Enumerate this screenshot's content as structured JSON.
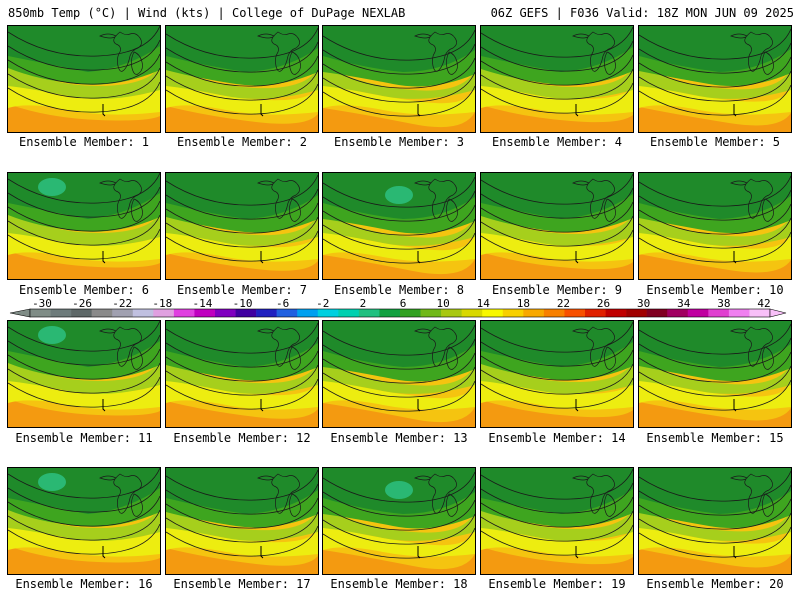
{
  "header": {
    "left": "850mb Temp (°C) | Wind (kts) | College of DuPage NEXLAB",
    "right": "06Z GEFS | F036 Valid: 18Z MON JUN 09 2025"
  },
  "members": [
    "Ensemble Member: 1",
    "Ensemble Member: 2",
    "Ensemble Member: 3",
    "Ensemble Member: 4",
    "Ensemble Member: 5",
    "Ensemble Member: 6",
    "Ensemble Member: 7",
    "Ensemble Member: 8",
    "Ensemble Member: 9",
    "Ensemble Member: 10",
    "Ensemble Member: 11",
    "Ensemble Member: 12",
    "Ensemble Member: 13",
    "Ensemble Member: 14",
    "Ensemble Member: 15",
    "Ensemble Member: 16",
    "Ensemble Member: 17",
    "Ensemble Member: 18",
    "Ensemble Member: 19",
    "Ensemble Member: 20"
  ],
  "colorbar": {
    "labels": [
      "-30",
      "-26",
      "-22",
      "-18",
      "-14",
      "-10",
      "-6",
      "-2",
      "2",
      "6",
      "10",
      "14",
      "18",
      "22",
      "26",
      "30",
      "34",
      "38",
      "42"
    ],
    "colors": [
      "#7f8c86",
      "#6d7b7b",
      "#5e6868",
      "#8a8a8a",
      "#a0a0b0",
      "#c0c0e0",
      "#e0a0e0",
      "#e040e0",
      "#c000c0",
      "#8000c0",
      "#4000a0",
      "#2020c0",
      "#2060e0",
      "#00a0f0",
      "#00d0e0",
      "#00d0b0",
      "#20c080",
      "#10a040",
      "#30a020",
      "#70b818",
      "#a8c810",
      "#d8d800",
      "#f8f800",
      "#f8d000",
      "#f8a800",
      "#f88000",
      "#f85000",
      "#e02000",
      "#c00000",
      "#a00000",
      "#800020",
      "#a00060",
      "#c000a0",
      "#e040d0",
      "#f080f0",
      "#f8c0f8"
    ]
  },
  "palette": {
    "dark_green": "#1f8a2a",
    "green": "#3ea51f",
    "yellow_green": "#a6cf1c",
    "yellow": "#eded10",
    "orange_yellow": "#f5c410",
    "orange": "#f49a10",
    "teal": "#2dbf80"
  }
}
